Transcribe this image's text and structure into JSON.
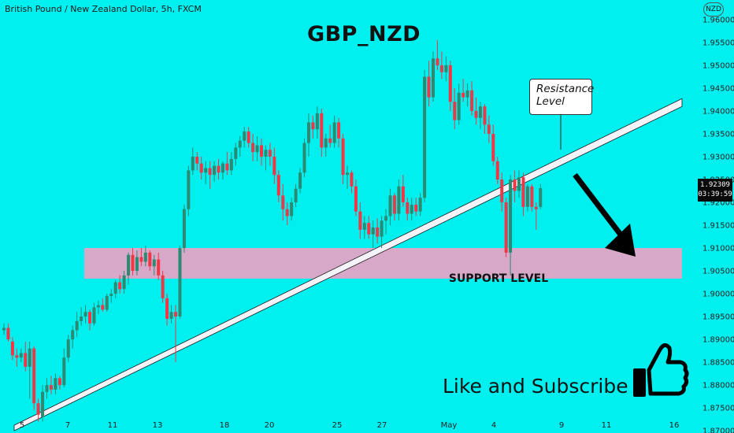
{
  "symbol_label": "British Pound / New Zealand Dollar, 5h, FXCM",
  "currency_badge": "NZD",
  "chart_data": {
    "type": "candlestick",
    "title": "GBP_NZD",
    "yticks": [
      "1.96000",
      "1.95500",
      "1.95000",
      "1.94500",
      "1.94000",
      "1.93500",
      "1.93000",
      "1.92500",
      "1.92000",
      "1.91500",
      "1.91000",
      "1.90500",
      "1.90000",
      "1.89500",
      "1.89000",
      "1.88500",
      "1.88000",
      "1.87500",
      "1.87000"
    ],
    "ylim": [
      1.8695,
      1.9643
    ],
    "xticks": [
      "5",
      "7",
      "11",
      "13",
      "18",
      "20",
      "25",
      "27",
      "May",
      "4",
      "9",
      "11",
      "16"
    ],
    "last_price": "1.92309",
    "countdown": "03:39:59",
    "candles": [
      {
        "o": 1.892,
        "h": 1.8935,
        "l": 1.891,
        "c": 1.8925
      },
      {
        "o": 1.8925,
        "h": 1.8935,
        "l": 1.8895,
        "c": 1.89
      },
      {
        "o": 1.8895,
        "h": 1.8905,
        "l": 1.8855,
        "c": 1.8865
      },
      {
        "o": 1.8865,
        "h": 1.888,
        "l": 1.884,
        "c": 1.886
      },
      {
        "o": 1.886,
        "h": 1.888,
        "l": 1.885,
        "c": 1.887
      },
      {
        "o": 1.887,
        "h": 1.8895,
        "l": 1.883,
        "c": 1.884
      },
      {
        "o": 1.884,
        "h": 1.8895,
        "l": 1.877,
        "c": 1.888
      },
      {
        "o": 1.888,
        "h": 1.8885,
        "l": 1.8745,
        "c": 1.876
      },
      {
        "o": 1.876,
        "h": 1.877,
        "l": 1.872,
        "c": 1.8735
      },
      {
        "o": 1.873,
        "h": 1.88,
        "l": 1.872,
        "c": 1.8785
      },
      {
        "o": 1.8785,
        "h": 1.8815,
        "l": 1.877,
        "c": 1.88
      },
      {
        "o": 1.88,
        "h": 1.882,
        "l": 1.878,
        "c": 1.879
      },
      {
        "o": 1.879,
        "h": 1.8825,
        "l": 1.878,
        "c": 1.8815
      },
      {
        "o": 1.8815,
        "h": 1.882,
        "l": 1.879,
        "c": 1.88
      },
      {
        "o": 1.88,
        "h": 1.888,
        "l": 1.8795,
        "c": 1.886
      },
      {
        "o": 1.886,
        "h": 1.891,
        "l": 1.885,
        "c": 1.89
      },
      {
        "o": 1.89,
        "h": 1.893,
        "l": 1.888,
        "c": 1.892
      },
      {
        "o": 1.892,
        "h": 1.896,
        "l": 1.8905,
        "c": 1.894
      },
      {
        "o": 1.894,
        "h": 1.897,
        "l": 1.893,
        "c": 1.895
      },
      {
        "o": 1.895,
        "h": 1.8975,
        "l": 1.8935,
        "c": 1.896
      },
      {
        "o": 1.896,
        "h": 1.8965,
        "l": 1.892,
        "c": 1.8935
      },
      {
        "o": 1.8935,
        "h": 1.898,
        "l": 1.893,
        "c": 1.897
      },
      {
        "o": 1.897,
        "h": 1.8985,
        "l": 1.8955,
        "c": 1.8975
      },
      {
        "o": 1.8975,
        "h": 1.899,
        "l": 1.896,
        "c": 1.8965
      },
      {
        "o": 1.8965,
        "h": 1.9,
        "l": 1.896,
        "c": 1.8995
      },
      {
        "o": 1.8995,
        "h": 1.901,
        "l": 1.898,
        "c": 1.9
      },
      {
        "o": 1.9,
        "h": 1.903,
        "l": 1.899,
        "c": 1.9025
      },
      {
        "o": 1.9025,
        "h": 1.904,
        "l": 1.9,
        "c": 1.901
      },
      {
        "o": 1.901,
        "h": 1.905,
        "l": 1.9,
        "c": 1.904
      },
      {
        "o": 1.904,
        "h": 1.909,
        "l": 1.902,
        "c": 1.9085
      },
      {
        "o": 1.9085,
        "h": 1.91,
        "l": 1.904,
        "c": 1.905
      },
      {
        "o": 1.905,
        "h": 1.9095,
        "l": 1.904,
        "c": 1.908
      },
      {
        "o": 1.908,
        "h": 1.91,
        "l": 1.906,
        "c": 1.907
      },
      {
        "o": 1.907,
        "h": 1.9105,
        "l": 1.906,
        "c": 1.909
      },
      {
        "o": 1.909,
        "h": 1.9095,
        "l": 1.905,
        "c": 1.906
      },
      {
        "o": 1.906,
        "h": 1.9085,
        "l": 1.904,
        "c": 1.9075
      },
      {
        "o": 1.9075,
        "h": 1.909,
        "l": 1.903,
        "c": 1.904
      },
      {
        "o": 1.904,
        "h": 1.905,
        "l": 1.898,
        "c": 1.899
      },
      {
        "o": 1.899,
        "h": 1.9,
        "l": 1.893,
        "c": 1.8945
      },
      {
        "o": 1.8945,
        "h": 1.8975,
        "l": 1.8935,
        "c": 1.896
      },
      {
        "o": 1.896,
        "h": 1.8975,
        "l": 1.885,
        "c": 1.895
      },
      {
        "o": 1.895,
        "h": 1.9105,
        "l": 1.8945,
        "c": 1.91
      },
      {
        "o": 1.91,
        "h": 1.9195,
        "l": 1.909,
        "c": 1.9185
      },
      {
        "o": 1.9185,
        "h": 1.928,
        "l": 1.917,
        "c": 1.927
      },
      {
        "o": 1.927,
        "h": 1.932,
        "l": 1.926,
        "c": 1.93
      },
      {
        "o": 1.93,
        "h": 1.931,
        "l": 1.927,
        "c": 1.9285
      },
      {
        "o": 1.9285,
        "h": 1.93,
        "l": 1.925,
        "c": 1.9265
      },
      {
        "o": 1.9265,
        "h": 1.929,
        "l": 1.924,
        "c": 1.9275
      },
      {
        "o": 1.9275,
        "h": 1.929,
        "l": 1.923,
        "c": 1.926
      },
      {
        "o": 1.926,
        "h": 1.929,
        "l": 1.9245,
        "c": 1.928
      },
      {
        "o": 1.928,
        "h": 1.9295,
        "l": 1.925,
        "c": 1.9265
      },
      {
        "o": 1.9265,
        "h": 1.929,
        "l": 1.925,
        "c": 1.9285
      },
      {
        "o": 1.9285,
        "h": 1.931,
        "l": 1.926,
        "c": 1.927
      },
      {
        "o": 1.927,
        "h": 1.931,
        "l": 1.926,
        "c": 1.9295
      },
      {
        "o": 1.9295,
        "h": 1.933,
        "l": 1.928,
        "c": 1.932
      },
      {
        "o": 1.932,
        "h": 1.9345,
        "l": 1.93,
        "c": 1.9335
      },
      {
        "o": 1.9335,
        "h": 1.9365,
        "l": 1.932,
        "c": 1.9355
      },
      {
        "o": 1.9355,
        "h": 1.9365,
        "l": 1.932,
        "c": 1.933
      },
      {
        "o": 1.933,
        "h": 1.935,
        "l": 1.929,
        "c": 1.931
      },
      {
        "o": 1.931,
        "h": 1.9345,
        "l": 1.929,
        "c": 1.9325
      },
      {
        "o": 1.9325,
        "h": 1.934,
        "l": 1.928,
        "c": 1.93
      },
      {
        "o": 1.93,
        "h": 1.9325,
        "l": 1.927,
        "c": 1.9315
      },
      {
        "o": 1.9315,
        "h": 1.933,
        "l": 1.928,
        "c": 1.93
      },
      {
        "o": 1.93,
        "h": 1.932,
        "l": 1.924,
        "c": 1.926
      },
      {
        "o": 1.926,
        "h": 1.927,
        "l": 1.92,
        "c": 1.9215
      },
      {
        "o": 1.9215,
        "h": 1.924,
        "l": 1.916,
        "c": 1.9185
      },
      {
        "o": 1.9185,
        "h": 1.92,
        "l": 1.915,
        "c": 1.917
      },
      {
        "o": 1.917,
        "h": 1.921,
        "l": 1.916,
        "c": 1.92
      },
      {
        "o": 1.92,
        "h": 1.924,
        "l": 1.919,
        "c": 1.923
      },
      {
        "o": 1.923,
        "h": 1.9275,
        "l": 1.922,
        "c": 1.9265
      },
      {
        "o": 1.9265,
        "h": 1.934,
        "l": 1.9255,
        "c": 1.933
      },
      {
        "o": 1.933,
        "h": 1.9395,
        "l": 1.93,
        "c": 1.9375
      },
      {
        "o": 1.9375,
        "h": 1.939,
        "l": 1.934,
        "c": 1.936
      },
      {
        "o": 1.936,
        "h": 1.941,
        "l": 1.934,
        "c": 1.9395
      },
      {
        "o": 1.9395,
        "h": 1.9405,
        "l": 1.93,
        "c": 1.932
      },
      {
        "o": 1.932,
        "h": 1.935,
        "l": 1.93,
        "c": 1.934
      },
      {
        "o": 1.934,
        "h": 1.937,
        "l": 1.932,
        "c": 1.933
      },
      {
        "o": 1.933,
        "h": 1.939,
        "l": 1.932,
        "c": 1.9375
      },
      {
        "o": 1.9375,
        "h": 1.9385,
        "l": 1.932,
        "c": 1.934
      },
      {
        "o": 1.934,
        "h": 1.935,
        "l": 1.924,
        "c": 1.926
      },
      {
        "o": 1.926,
        "h": 1.928,
        "l": 1.923,
        "c": 1.9265
      },
      {
        "o": 1.9265,
        "h": 1.927,
        "l": 1.922,
        "c": 1.9235
      },
      {
        "o": 1.9235,
        "h": 1.925,
        "l": 1.917,
        "c": 1.918
      },
      {
        "o": 1.918,
        "h": 1.92,
        "l": 1.912,
        "c": 1.914
      },
      {
        "o": 1.914,
        "h": 1.917,
        "l": 1.912,
        "c": 1.9155
      },
      {
        "o": 1.9155,
        "h": 1.917,
        "l": 1.912,
        "c": 1.913
      },
      {
        "o": 1.913,
        "h": 1.916,
        "l": 1.91,
        "c": 1.9145
      },
      {
        "o": 1.9145,
        "h": 1.9165,
        "l": 1.911,
        "c": 1.9125
      },
      {
        "o": 1.9125,
        "h": 1.917,
        "l": 1.91,
        "c": 1.916
      },
      {
        "o": 1.916,
        "h": 1.9185,
        "l": 1.913,
        "c": 1.917
      },
      {
        "o": 1.917,
        "h": 1.923,
        "l": 1.915,
        "c": 1.9215
      },
      {
        "o": 1.9215,
        "h": 1.922,
        "l": 1.916,
        "c": 1.9175
      },
      {
        "o": 1.9175,
        "h": 1.925,
        "l": 1.916,
        "c": 1.9235
      },
      {
        "o": 1.9235,
        "h": 1.926,
        "l": 1.919,
        "c": 1.92
      },
      {
        "o": 1.92,
        "h": 1.921,
        "l": 1.916,
        "c": 1.9175
      },
      {
        "o": 1.9175,
        "h": 1.921,
        "l": 1.916,
        "c": 1.9195
      },
      {
        "o": 1.9195,
        "h": 1.921,
        "l": 1.917,
        "c": 1.918
      },
      {
        "o": 1.918,
        "h": 1.922,
        "l": 1.917,
        "c": 1.921
      },
      {
        "o": 1.921,
        "h": 1.949,
        "l": 1.92,
        "c": 1.9475
      },
      {
        "o": 1.9475,
        "h": 1.951,
        "l": 1.941,
        "c": 1.943
      },
      {
        "o": 1.943,
        "h": 1.953,
        "l": 1.942,
        "c": 1.9515
      },
      {
        "o": 1.9515,
        "h": 1.9555,
        "l": 1.949,
        "c": 1.95
      },
      {
        "o": 1.95,
        "h": 1.953,
        "l": 1.947,
        "c": 1.9485
      },
      {
        "o": 1.9485,
        "h": 1.952,
        "l": 1.9465,
        "c": 1.95
      },
      {
        "o": 1.95,
        "h": 1.951,
        "l": 1.94,
        "c": 1.942
      },
      {
        "o": 1.942,
        "h": 1.945,
        "l": 1.936,
        "c": 1.938
      },
      {
        "o": 1.938,
        "h": 1.946,
        "l": 1.937,
        "c": 1.944
      },
      {
        "o": 1.944,
        "h": 1.947,
        "l": 1.942,
        "c": 1.943
      },
      {
        "o": 1.943,
        "h": 1.946,
        "l": 1.941,
        "c": 1.9445
      },
      {
        "o": 1.9445,
        "h": 1.9465,
        "l": 1.939,
        "c": 1.94
      },
      {
        "o": 1.94,
        "h": 1.943,
        "l": 1.937,
        "c": 1.9385
      },
      {
        "o": 1.9385,
        "h": 1.942,
        "l": 1.936,
        "c": 1.941
      },
      {
        "o": 1.941,
        "h": 1.9415,
        "l": 1.935,
        "c": 1.937
      },
      {
        "o": 1.937,
        "h": 1.939,
        "l": 1.933,
        "c": 1.935
      },
      {
        "o": 1.935,
        "h": 1.937,
        "l": 1.928,
        "c": 1.929
      },
      {
        "o": 1.929,
        "h": 1.93,
        "l": 1.924,
        "c": 1.925
      },
      {
        "o": 1.925,
        "h": 1.9265,
        "l": 1.918,
        "c": 1.92
      },
      {
        "o": 1.92,
        "h": 1.921,
        "l": 1.908,
        "c": 1.909
      },
      {
        "o": 1.909,
        "h": 1.926,
        "l": 1.904,
        "c": 1.925
      },
      {
        "o": 1.925,
        "h": 1.927,
        "l": 1.92,
        "c": 1.9225
      },
      {
        "o": 1.9225,
        "h": 1.927,
        "l": 1.921,
        "c": 1.9255
      },
      {
        "o": 1.9255,
        "h": 1.9265,
        "l": 1.917,
        "c": 1.919
      },
      {
        "o": 1.919,
        "h": 1.924,
        "l": 1.918,
        "c": 1.9235
      },
      {
        "o": 1.9235,
        "h": 1.924,
        "l": 1.918,
        "c": 1.919
      },
      {
        "o": 1.919,
        "h": 1.92,
        "l": 1.914,
        "c": 1.9185
      },
      {
        "o": 1.919,
        "h": 1.924,
        "l": 1.9185,
        "c": 1.9231
      }
    ]
  },
  "annotations": {
    "resistance_line1": "Resistance",
    "resistance_line2": "Level",
    "support_label": "SUPPORT LEVEL",
    "cta": "Like and Subscribe",
    "support_zone": [
      1.9033,
      1.91
    ],
    "trendline": {
      "from": {
        "candle": 3,
        "price": 1.8712
      },
      "to": {
        "candle": 186,
        "price": 1.9415
      }
    }
  },
  "colors": {
    "background": "#00f0f0",
    "bull": "#2c8a73",
    "bear": "#f23645",
    "zone": "#d8a8c8",
    "trendline": "#f4f4fa",
    "arrow": "#000000"
  }
}
